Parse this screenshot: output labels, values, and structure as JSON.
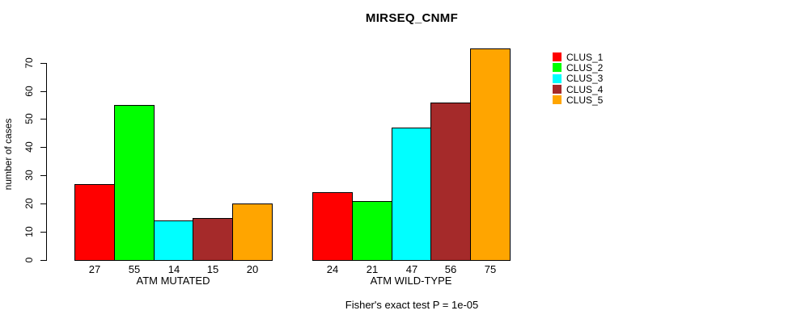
{
  "title": "MIRSEQ_CNMF",
  "caption": "Fisher's exact test P = 1e-05",
  "chart_data": {
    "type": "bar",
    "title": "MIRSEQ_CNMF",
    "xlabel": "",
    "ylabel": "number of cases",
    "ylim": [
      0,
      75
    ],
    "y_ticks": [
      0,
      10,
      20,
      30,
      40,
      50,
      60,
      70
    ],
    "grid": false,
    "legend_position": "right",
    "bar_border_color": "#000000",
    "groups": [
      {
        "label": "ATM MUTATED",
        "values": [
          27,
          55,
          14,
          15,
          20
        ]
      },
      {
        "label": "ATM WILD-TYPE",
        "values": [
          24,
          21,
          47,
          56,
          75
        ]
      }
    ],
    "series": [
      {
        "name": "CLUS_1",
        "color": "#ff0000"
      },
      {
        "name": "CLUS_2",
        "color": "#00ff00"
      },
      {
        "name": "CLUS_3",
        "color": "#00ffff"
      },
      {
        "name": "CLUS_4",
        "color": "#a52a2a"
      },
      {
        "name": "CLUS_5",
        "color": "#ffa500"
      }
    ],
    "annotation": "Fisher's exact test P = 1e-05"
  }
}
